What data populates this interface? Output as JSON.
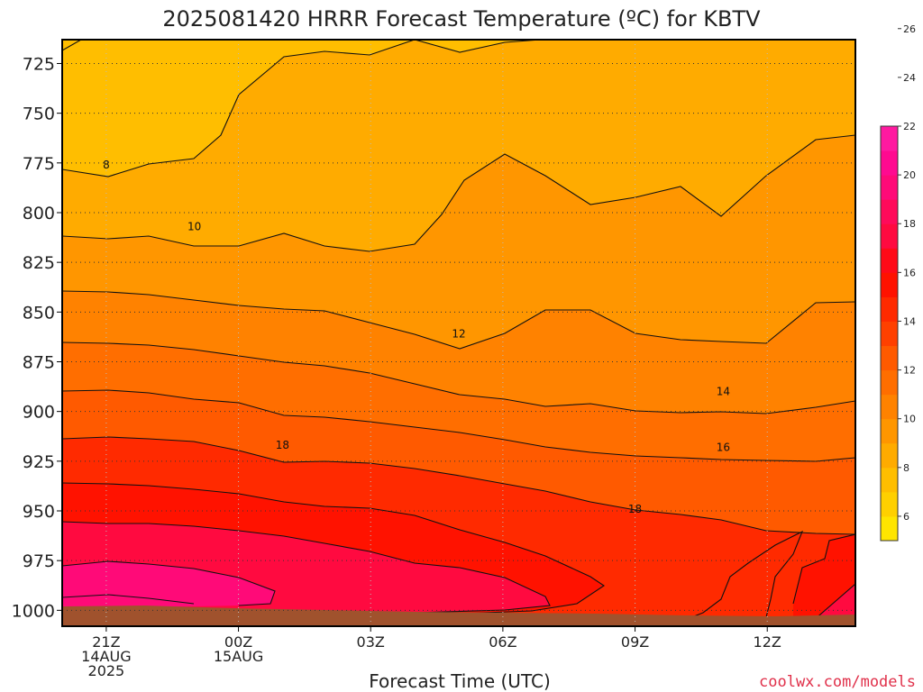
{
  "chart_data": {
    "type": "heatmap",
    "title": "2025081420 HRRR Forecast Temperature (ºC) for KBTV",
    "xlabel": "Forecast Time (UTC)",
    "ylabel": "",
    "credit": "coolwx.com/models",
    "y_ticks": [
      "725",
      "750",
      "775",
      "800",
      "825",
      "850",
      "875",
      "900",
      "925",
      "950",
      "975",
      "1000"
    ],
    "y_values": [
      725,
      750,
      775,
      800,
      825,
      850,
      875,
      900,
      925,
      950,
      975,
      1000
    ],
    "ylim": [
      1008,
      713
    ],
    "x_ticks": [
      {
        "hour": 1,
        "lines": [
          "21Z",
          "14AUG",
          "2025"
        ]
      },
      {
        "hour": 4,
        "lines": [
          "00Z",
          "15AUG"
        ]
      },
      {
        "hour": 7,
        "lines": [
          "03Z"
        ]
      },
      {
        "hour": 10,
        "lines": [
          "06Z"
        ]
      },
      {
        "hour": 13,
        "lines": [
          "09Z"
        ]
      },
      {
        "hour": 16,
        "lines": [
          "12Z"
        ]
      }
    ],
    "xlim": [
      0,
      18
    ],
    "contour_interval": 2,
    "colorbar_ticks": [
      "6",
      "8",
      "10",
      "12",
      "14",
      "16",
      "18",
      "20",
      "22",
      "24",
      "26"
    ],
    "colorbar_colors": [
      "#ffe500",
      "#ffd000",
      "#ffbe00",
      "#ffab00",
      "#ff9600",
      "#ff8200",
      "#ff6e00",
      "#ff5a00",
      "#ff4000",
      "#ff2a00",
      "#ff1200",
      "#ff0a18",
      "#ff0a40",
      "#ff0a5a",
      "#ff0a78",
      "#ff0a90",
      "#ff1aa0"
    ],
    "contour_labels": [
      {
        "text": "8",
        "hour": 1.0,
        "p": 776
      },
      {
        "text": "10",
        "hour": 3.0,
        "p": 807
      },
      {
        "text": "12",
        "hour": 9.0,
        "p": 861
      },
      {
        "text": "14",
        "hour": 15.0,
        "p": 890
      },
      {
        "text": "16",
        "hour": 15.0,
        "p": 918
      },
      {
        "text": "18",
        "hour": 5.0,
        "p": 917
      },
      {
        "text": "18",
        "hour": 13.0,
        "p": 949
      }
    ],
    "temperature_bands": [
      {
        "value": 7,
        "color": "#ffbe00"
      },
      {
        "value": 9,
        "color": "#ffab00"
      },
      {
        "value": 11,
        "color": "#ff9600"
      },
      {
        "value": 13,
        "color": "#ff8200"
      },
      {
        "value": 15,
        "color": "#ff6e00"
      },
      {
        "value": 17,
        "color": "#ff5a00"
      },
      {
        "value": 19,
        "color": "#ff2a00"
      },
      {
        "value": 21,
        "color": "#ff1200"
      },
      {
        "value": 23,
        "color": "#ff0a40"
      },
      {
        "value": 25,
        "color": "#ff0a78"
      },
      {
        "value": 27,
        "color": "#ff0a78"
      }
    ],
    "ground_color": "#a0522d"
  }
}
